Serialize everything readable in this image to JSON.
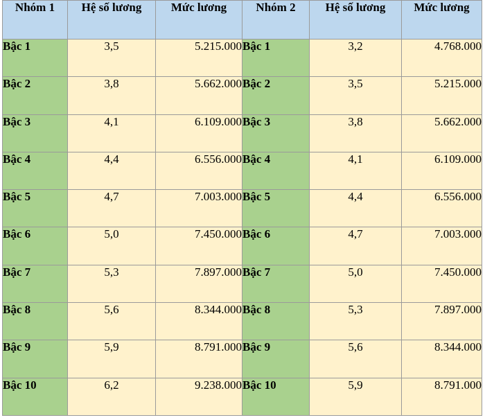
{
  "headers": [
    "Nhóm 1",
    "Hệ số lương",
    "Mức  lương",
    "Nhóm 2",
    "Hệ số lương",
    "Mức lương"
  ],
  "rows": [
    {
      "g1": "Bậc 1",
      "c1": "3,5",
      "s1": "5.215.000",
      "g2": "Bậc 1",
      "c2": "3,2",
      "s2": "4.768.000"
    },
    {
      "g1": "Bậc 2",
      "c1": "3,8",
      "s1": "5.662.000",
      "g2": "Bậc 2",
      "c2": "3,5",
      "s2": "5.215.000"
    },
    {
      "g1": "Bậc 3",
      "c1": "4,1",
      "s1": "6.109.000",
      "g2": "Bậc 3",
      "c2": "3,8",
      "s2": "5.662.000"
    },
    {
      "g1": "Bậc 4",
      "c1": "4,4",
      "s1": "6.556.000",
      "g2": "Bậc 4",
      "c2": "4,1",
      "s2": "6.109.000"
    },
    {
      "g1": "Bậc 5",
      "c1": "4,7",
      "s1": "7.003.000",
      "g2": "Bậc 5",
      "c2": "4,4",
      "s2": "6.556.000"
    },
    {
      "g1": "Bậc 6",
      "c1": "5,0",
      "s1": "7.450.000",
      "g2": "Bậc 6",
      "c2": "4,7",
      "s2": "7.003.000"
    },
    {
      "g1": "Bậc 7",
      "c1": "5,3",
      "s1": "7.897.000",
      "g2": "Bậc 7",
      "c2": "5,0",
      "s2": "7.450.000"
    },
    {
      "g1": "Bậc 8",
      "c1": "5,6",
      "s1": "8.344.000",
      "g2": "Bậc 8",
      "c2": "5,3",
      "s2": "7.897.000"
    },
    {
      "g1": "Bậc 9",
      "c1": "5,9",
      "s1": "8.791.000",
      "g2": "Bậc 9",
      "c2": "5,6",
      "s2": "8.344.000"
    },
    {
      "g1": "Bậc 10",
      "c1": "6,2",
      "s1": "9.238.000",
      "g2": "Bậc 10",
      "c2": "5,9",
      "s2": "8.791.000"
    }
  ]
}
